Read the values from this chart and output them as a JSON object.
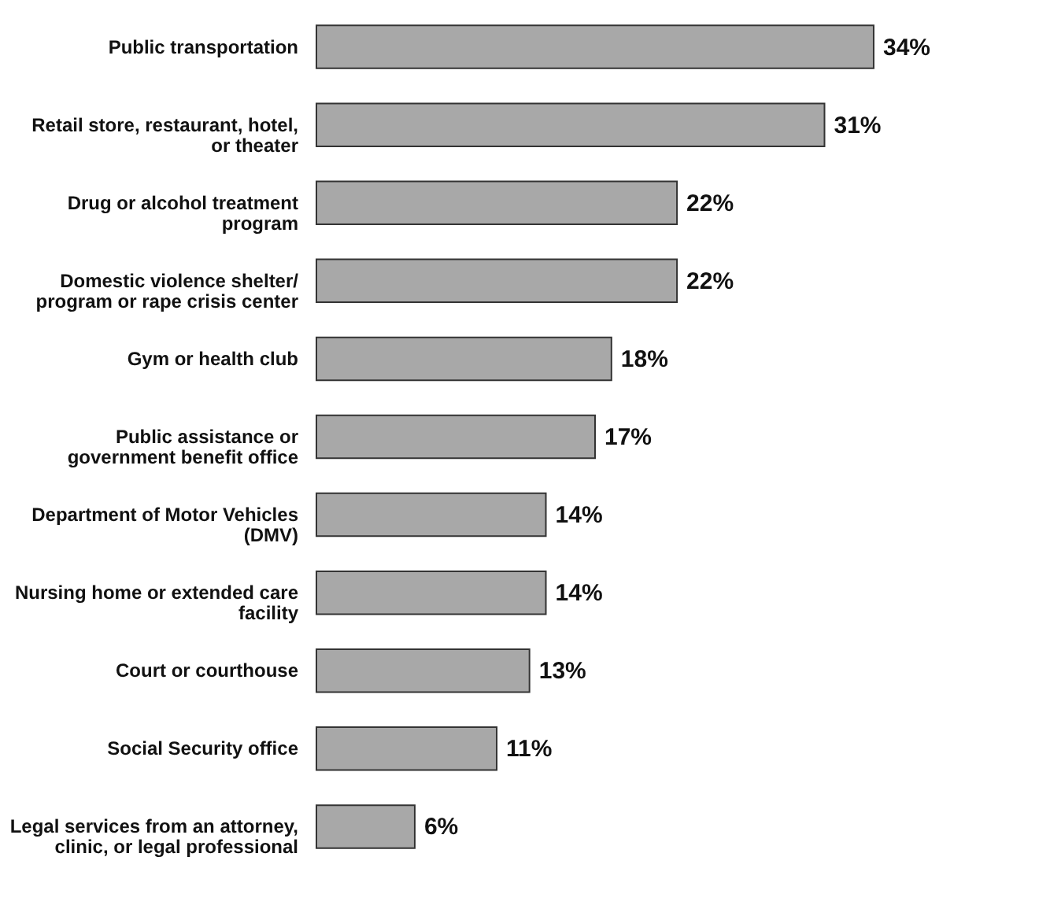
{
  "chart_data": {
    "type": "bar",
    "orientation": "horizontal",
    "value_labels": [
      "34%",
      "31%",
      "22%",
      "22%",
      "18%",
      "17%",
      "14%",
      "14%",
      "13%",
      "11%",
      "6%"
    ],
    "categories": [
      "Public transportation",
      "Retail store, restaurant, hotel,\nor theater",
      "Drug or alcohol treatment\nprogram",
      "Domestic violence shelter/\nprogram or rape crisis center",
      "Gym or health club",
      "Public assistance or\ngovernment benefit office",
      "Department of Motor Vehicles\n(DMV)",
      "Nursing home or extended care\nfacility",
      "Court or courthouse",
      "Social Security office",
      "Legal services from an attorney,\nclinic, or legal professional"
    ],
    "values": [
      34,
      31,
      22,
      22,
      18,
      17,
      14,
      14,
      13,
      11,
      6
    ],
    "color": "#a8a8a8"
  }
}
